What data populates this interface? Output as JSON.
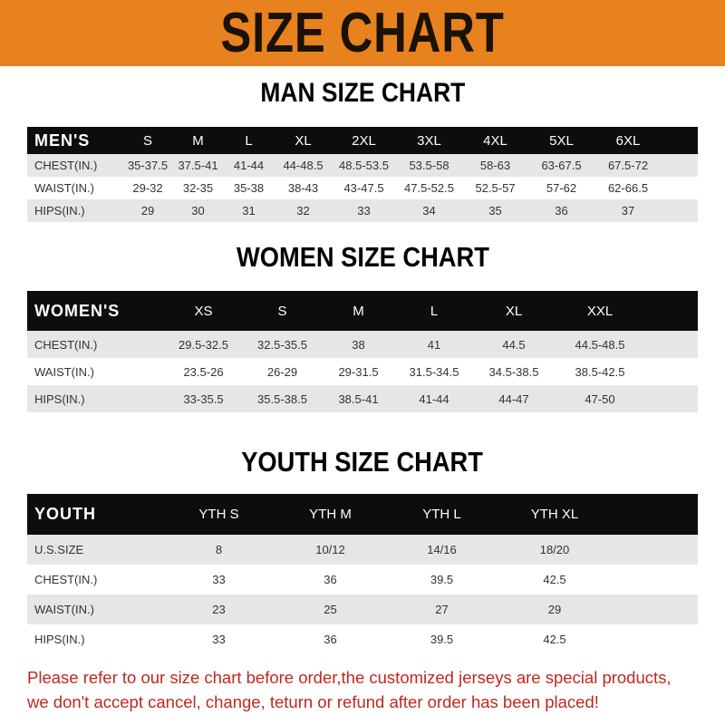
{
  "title": "SIZE CHART",
  "men": {
    "heading": "MAN SIZE CHART",
    "headers": [
      "MEN'S",
      "S",
      "M",
      "L",
      "XL",
      "2XL",
      "3XL",
      "4XL",
      "5XL",
      "6XL"
    ],
    "rows": [
      [
        "CHEST(IN.)",
        "35-37.5",
        "37.5-41",
        "41-44",
        "44-48.5",
        "48.5-53.5",
        "53.5-58",
        "58-63",
        "63-67.5",
        "67.5-72"
      ],
      [
        "WAIST(IN.)",
        "29-32",
        "32-35",
        "35-38",
        "38-43",
        "43-47.5",
        "47.5-52.5",
        "52.5-57",
        "57-62",
        "62-66.5"
      ],
      [
        "HIPS(IN.)",
        "29",
        "30",
        "31",
        "32",
        "33",
        "34",
        "35",
        "36",
        "37"
      ]
    ]
  },
  "women": {
    "heading": "WOMEN SIZE CHART",
    "headers": [
      "WOMEN'S",
      "XS",
      "S",
      "M",
      "L",
      "XL",
      "XXL"
    ],
    "rows": [
      [
        "CHEST(IN.)",
        "29.5-32.5",
        "32.5-35.5",
        "38",
        "41",
        "44.5",
        "44.5-48.5"
      ],
      [
        "WAIST(IN.)",
        "23.5-26",
        "26-29",
        "29-31.5",
        "31.5-34.5",
        "34.5-38.5",
        "38.5-42.5"
      ],
      [
        "HIPS(IN.)",
        "33-35.5",
        "35.5-38.5",
        "38.5-41",
        "41-44",
        "44-47",
        "47-50"
      ]
    ]
  },
  "youth": {
    "heading": "YOUTH SIZE CHART",
    "headers": [
      "YOUTH",
      "YTH S",
      "YTH M",
      "YTH L",
      "YTH XL"
    ],
    "rows": [
      [
        "U.S.SIZE",
        "8",
        "10/12",
        "14/16",
        "18/20"
      ],
      [
        "CHEST(IN.)",
        "33",
        "36",
        "39.5",
        "42.5"
      ],
      [
        "WAIST(IN.)",
        "23",
        "25",
        "27",
        "29"
      ],
      [
        "HIPS(IN.)",
        "33",
        "36",
        "39.5",
        "42.5"
      ]
    ]
  },
  "notice": [
    "Please refer to our size chart before order,the customized jerseys are special products,",
    "we don't accept cancel, change, teturn or refund after order has been placed!"
  ],
  "colors": {
    "banner": "#e8821e",
    "header_row": "#0d0d0d",
    "notice": "#c0281f"
  }
}
